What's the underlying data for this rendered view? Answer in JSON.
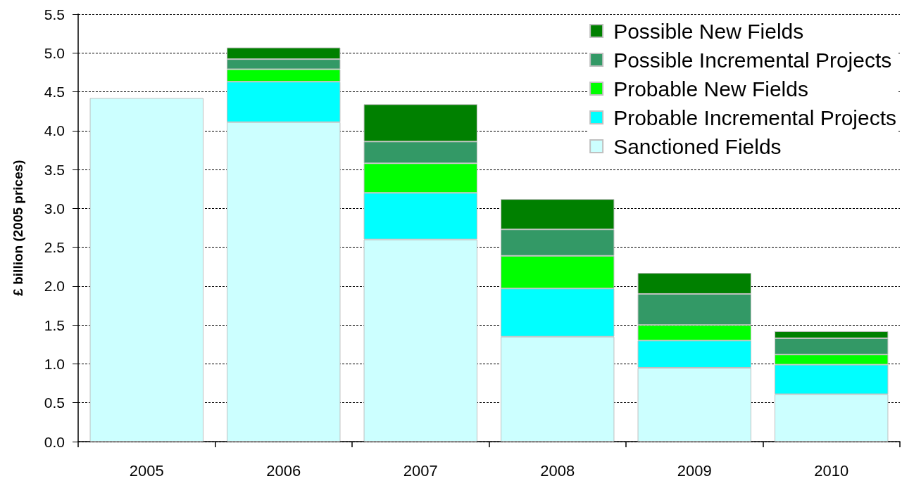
{
  "chart_data": {
    "type": "bar",
    "ylabel": "£ billion (2005 prices)",
    "categories": [
      "2005",
      "2006",
      "2007",
      "2008",
      "2009",
      "2010"
    ],
    "stacked": true,
    "series": [
      {
        "name": "Sanctioned Fields",
        "color": "#ccffff",
        "values": [
          4.42,
          4.11,
          2.6,
          1.35,
          0.95,
          0.61
        ]
      },
      {
        "name": "Probable Incremental Projects",
        "color": "#00ffff",
        "values": [
          null,
          0.52,
          0.6,
          0.62,
          0.35,
          0.38
        ]
      },
      {
        "name": "Probable New Fields",
        "color": "#00ff00",
        "values": [
          null,
          0.16,
          0.38,
          0.42,
          0.2,
          0.13
        ]
      },
      {
        "name": "Possible Incremental Projects",
        "color": "#339966",
        "values": [
          null,
          0.13,
          0.28,
          0.34,
          0.4,
          0.21
        ]
      },
      {
        "name": "Possible New Fields",
        "color": "#008000",
        "values": [
          null,
          0.15,
          0.48,
          0.39,
          0.27,
          0.09
        ]
      }
    ],
    "ylim": [
      0,
      5.5
    ],
    "yticks": [
      {
        "value": 0,
        "label": "0.0"
      },
      0.5,
      {
        "value": 1,
        "label": "1.0"
      },
      1.5,
      {
        "value": 2,
        "label": "2.0"
      },
      2.5,
      {
        "value": 3,
        "label": "3.0"
      },
      3.5,
      {
        "value": 4,
        "label": "4.0"
      },
      4.5,
      {
        "value": 5,
        "label": "5.0"
      },
      5.5
    ],
    "grid": "y",
    "legend": "top right"
  }
}
